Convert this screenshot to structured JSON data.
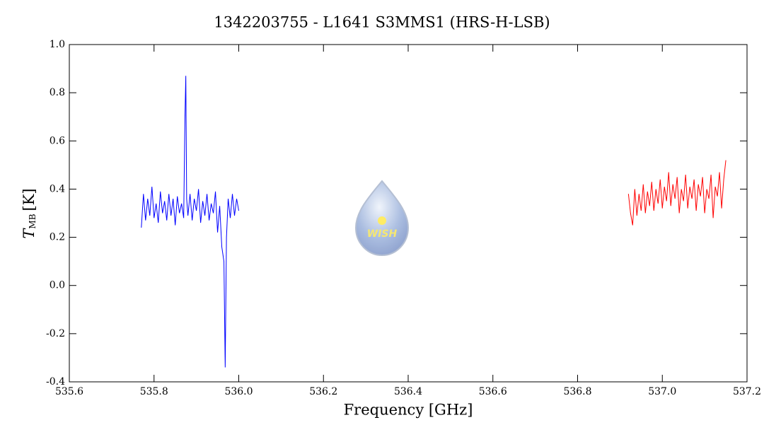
{
  "chart_data": {
    "type": "line",
    "title": "1342203755 - L1641 S3MMS1 (HRS-H-LSB)",
    "xlabel": "Frequency [GHz]",
    "ylabel": {
      "symbol": "T",
      "subscript": "MB",
      "unit": "[K]"
    },
    "logo_text": "WISH",
    "xlim": [
      535.6,
      537.2
    ],
    "xticks": [
      535.6,
      535.8,
      {
        "value": 536,
        "label": "536.0"
      },
      536.2,
      536.4,
      536.6,
      536.8,
      {
        "value": 537,
        "label": "537.0"
      },
      537.2
    ],
    "ylim": [
      -0.4,
      1.0
    ],
    "yticks": [
      -0.4,
      -0.2,
      {
        "value": 0,
        "label": "0.0"
      },
      0.2,
      0.4,
      0.6,
      0.8,
      {
        "value": 1,
        "label": "1.0"
      }
    ],
    "series": [
      {
        "color": "#0000ff",
        "x": [
          535.77,
          535.775,
          535.78,
          535.785,
          535.79,
          535.795,
          535.8,
          535.805,
          535.81,
          535.815,
          535.82,
          535.825,
          535.83,
          535.835,
          535.84,
          535.845,
          535.85,
          535.855,
          535.86,
          535.865,
          535.87,
          535.873,
          535.875,
          535.877,
          535.88,
          535.885,
          535.89,
          535.895,
          535.9,
          535.905,
          535.91,
          535.915,
          535.92,
          535.925,
          535.93,
          535.935,
          535.94,
          535.945,
          535.95,
          535.955,
          535.96,
          535.965,
          535.968,
          535.971,
          535.975,
          535.98,
          535.985,
          535.99,
          535.995,
          536.0
        ],
        "values": [
          0.24,
          0.38,
          0.27,
          0.36,
          0.29,
          0.41,
          0.28,
          0.34,
          0.26,
          0.39,
          0.3,
          0.35,
          0.27,
          0.38,
          0.29,
          0.36,
          0.25,
          0.37,
          0.3,
          0.34,
          0.28,
          0.7,
          0.87,
          0.36,
          0.29,
          0.38,
          0.27,
          0.36,
          0.31,
          0.4,
          0.26,
          0.35,
          0.29,
          0.38,
          0.27,
          0.34,
          0.3,
          0.39,
          0.22,
          0.33,
          0.16,
          0.1,
          -0.34,
          0.2,
          0.36,
          0.28,
          0.38,
          0.29,
          0.36,
          0.31
        ]
      },
      {
        "color": "#ff0000",
        "x": [
          536.92,
          536.925,
          536.93,
          536.935,
          536.94,
          536.945,
          536.95,
          536.955,
          536.96,
          536.965,
          536.97,
          536.975,
          536.98,
          536.985,
          536.99,
          536.995,
          537.0,
          537.005,
          537.01,
          537.015,
          537.02,
          537.025,
          537.03,
          537.035,
          537.04,
          537.045,
          537.05,
          537.055,
          537.06,
          537.065,
          537.07,
          537.075,
          537.08,
          537.085,
          537.09,
          537.095,
          537.1,
          537.105,
          537.11,
          537.115,
          537.12,
          537.125,
          537.13,
          537.135,
          537.14,
          537.145,
          537.15
        ],
        "values": [
          0.38,
          0.3,
          0.25,
          0.4,
          0.29,
          0.38,
          0.31,
          0.42,
          0.3,
          0.39,
          0.33,
          0.43,
          0.31,
          0.4,
          0.34,
          0.44,
          0.32,
          0.41,
          0.35,
          0.47,
          0.33,
          0.42,
          0.36,
          0.45,
          0.3,
          0.4,
          0.35,
          0.46,
          0.32,
          0.41,
          0.36,
          0.44,
          0.31,
          0.42,
          0.37,
          0.45,
          0.3,
          0.4,
          0.36,
          0.46,
          0.28,
          0.41,
          0.37,
          0.47,
          0.32,
          0.44,
          0.52
        ]
      }
    ]
  }
}
